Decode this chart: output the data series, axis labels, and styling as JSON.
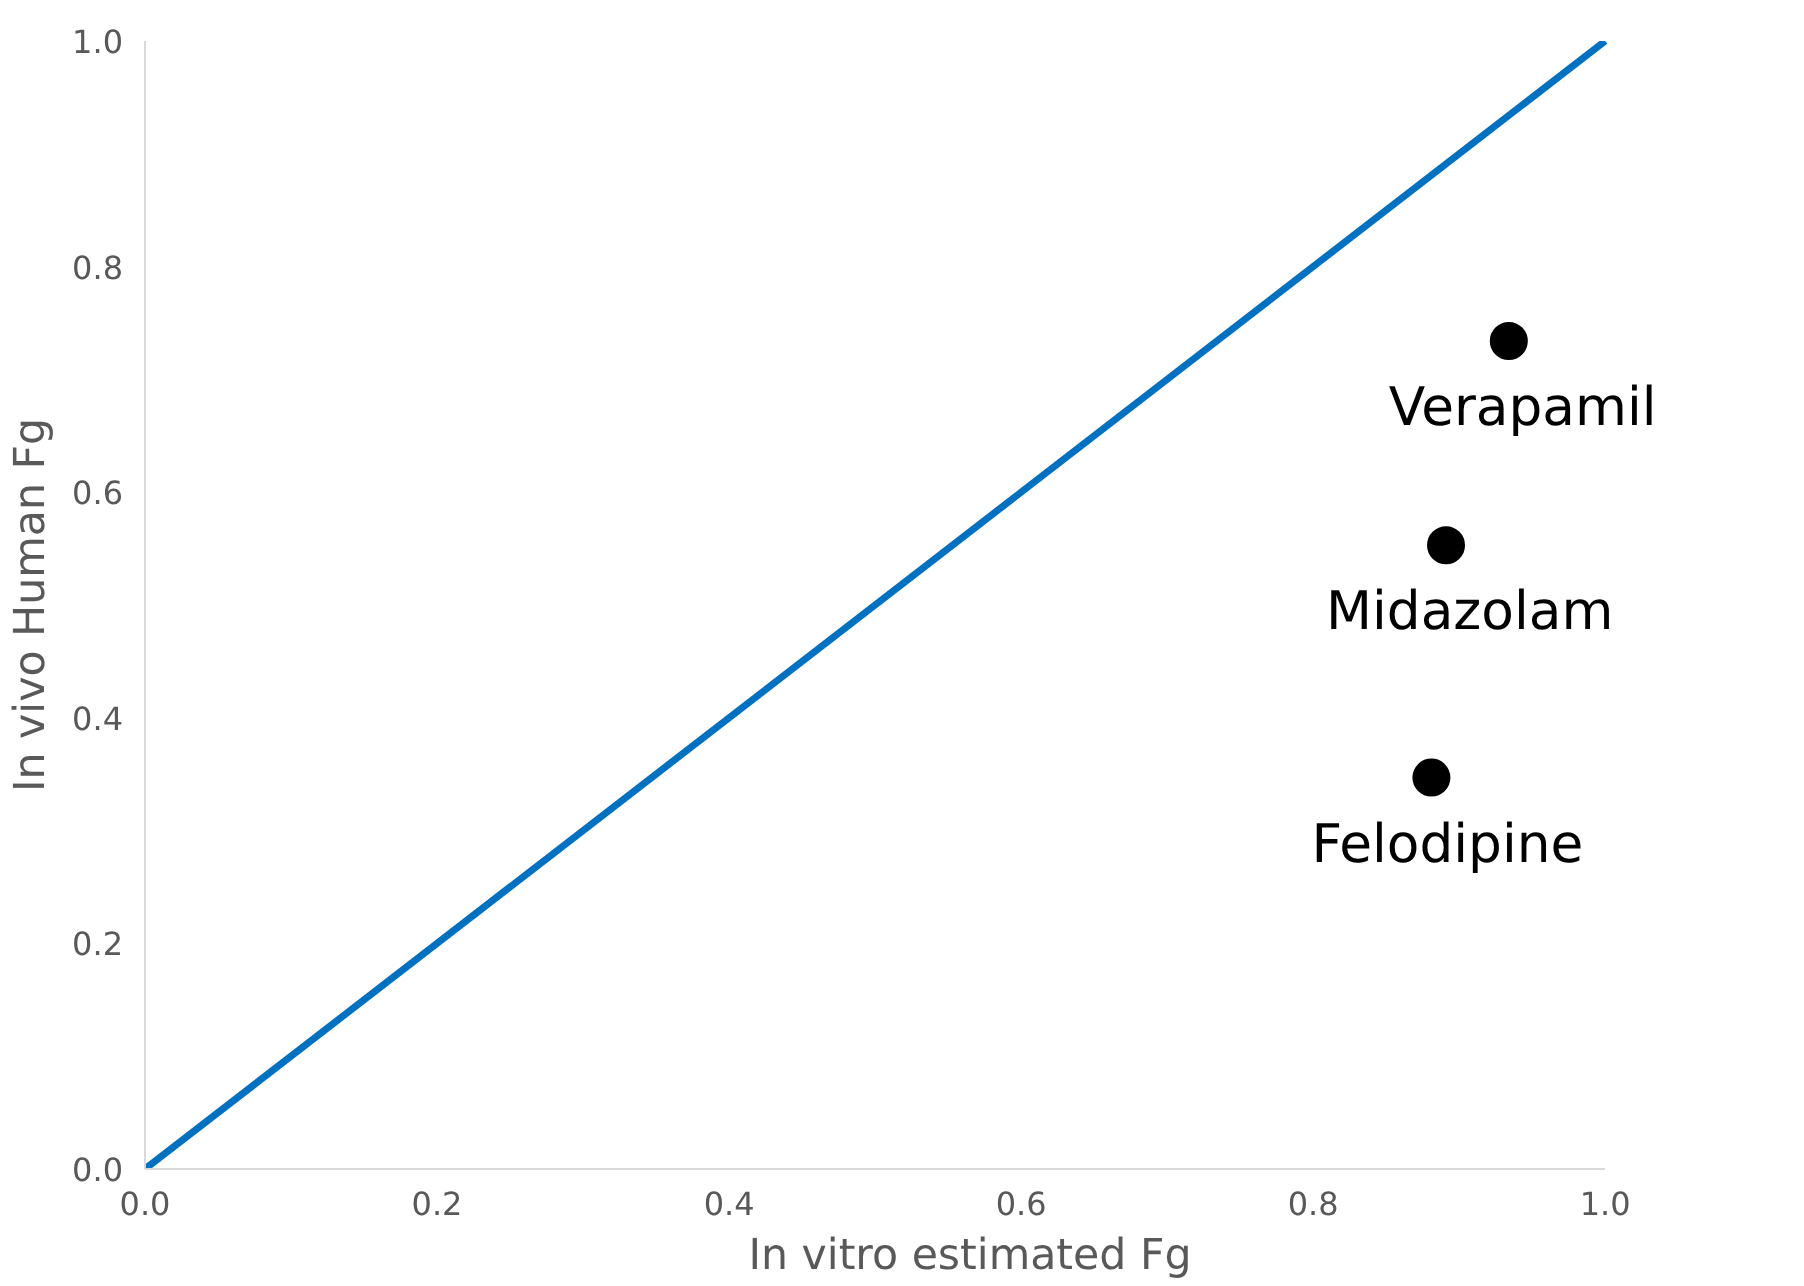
{
  "chart_data": {
    "type": "scatter",
    "xlabel": "In vitro estimated Fg",
    "ylabel": "In vivo Human Fg",
    "xlim": [
      0,
      1
    ],
    "ylim": [
      0,
      1
    ],
    "xticks": [
      {
        "value": 0,
        "label": "0.0"
      },
      {
        "value": 0.2,
        "label": "0.2"
      },
      {
        "value": 0.4,
        "label": "0.4"
      },
      {
        "value": 0.6,
        "label": "0.6"
      },
      {
        "value": 0.8,
        "label": "0.8"
      },
      {
        "value": 1,
        "label": "1.0"
      }
    ],
    "yticks": [
      {
        "value": 0,
        "label": "0.0"
      },
      {
        "value": 0.2,
        "label": "0.2"
      },
      {
        "value": 0.4,
        "label": "0.4"
      },
      {
        "value": 0.6,
        "label": "0.6"
      },
      {
        "value": 0.8,
        "label": "0.8"
      },
      {
        "value": 1,
        "label": "1.0"
      }
    ],
    "grid": false,
    "marker": "circle",
    "series": [
      {
        "type": "scatter",
        "color": "#000000",
        "x": [
          0.934,
          0.891,
          0.881
        ],
        "values": [
          0.734,
          0.553,
          0.347
        ]
      },
      {
        "type": "line",
        "color": "#0070c0",
        "x": [
          0,
          1
        ],
        "values": [
          0,
          1
        ],
        "line_style": "solid",
        "marker": "none"
      }
    ],
    "annotations": [
      {
        "text": "Verapamil",
        "x": 0.934,
        "y": 0.734
      },
      {
        "text": "Midazolam",
        "x": 0.891,
        "y": 0.553
      },
      {
        "text": "Felodipine",
        "x": 0.881,
        "y": 0.347
      }
    ]
  }
}
